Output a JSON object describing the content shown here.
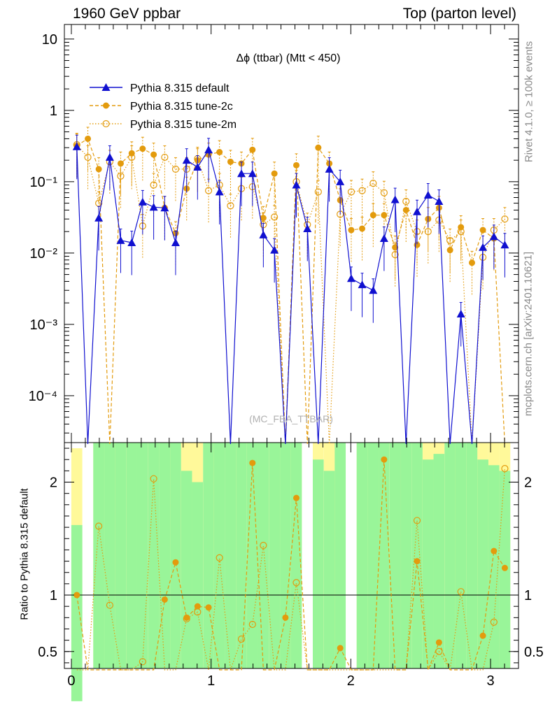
{
  "header": {
    "left": "1960 GeV ppbar",
    "right": "Top (parton level)"
  },
  "side": {
    "rivet": "Rivet 4.1.0, ≥ 100k events",
    "mcplots": "mcplots.cern.ch [arXiv:2401.10621]"
  },
  "colors": {
    "default": "#1010d0",
    "tune2c": "#e39b0d",
    "band_green": "#99f599",
    "band_yellow": "#fff99a"
  },
  "chart_data": [
    {
      "type": "line",
      "panel": "main",
      "title": "Δϕ (ttbar) (Mtt < 450)",
      "watermark": "(MC_FBA_TTBAR)",
      "xlabel": "",
      "ylabel": "",
      "yscale": "log",
      "xlim": [
        -0.05,
        3.2
      ],
      "ylim": [
        2.2e-05,
        16
      ],
      "y_tick_labels": [
        "10",
        "1",
        "10⁻¹",
        "10⁻²",
        "10⁻³",
        "10⁻⁴"
      ],
      "legend_position": "top-left",
      "legend": [
        "Pythia 8.315 default",
        "Pythia 8.315 tune-2c",
        "Pythia 8.315 tune-2m"
      ],
      "x": [
        0.039,
        0.118,
        0.196,
        0.275,
        0.353,
        0.432,
        0.51,
        0.589,
        0.668,
        0.746,
        0.825,
        0.903,
        0.982,
        1.06,
        1.139,
        1.217,
        1.296,
        1.374,
        1.453,
        1.532,
        1.61,
        1.689,
        1.767,
        1.846,
        1.924,
        2.003,
        2.081,
        2.16,
        2.238,
        2.317,
        2.395,
        2.474,
        2.553,
        2.631,
        2.71,
        2.788,
        2.867,
        2.945,
        3.024,
        3.102
      ],
      "series": [
        {
          "name": "Pythia 8.315 default",
          "marker": "triangle",
          "style": "solid",
          "values": [
            0.31,
            null,
            0.031,
            0.22,
            0.015,
            0.014,
            0.052,
            0.044,
            0.043,
            0.014,
            0.2,
            0.16,
            0.28,
            0.072,
            null,
            0.13,
            0.13,
            0.018,
            0.011,
            null,
            0.09,
            0.022,
            null,
            0.15,
            0.1,
            0.0044,
            0.0036,
            0.003,
            0.016,
            0.056,
            null,
            0.038,
            0.065,
            0.053,
            null,
            0.0014,
            null,
            0.012,
            0.017,
            0.013
          ]
        },
        {
          "name": "Pythia 8.315 tune-2c",
          "marker": "filled-circle",
          "style": "dashed",
          "values": [
            0.32,
            0.4,
            0.15,
            null,
            0.18,
            0.25,
            0.29,
            0.24,
            0.043,
            0.019,
            0.08,
            0.2,
            0.24,
            0.26,
            0.19,
            0.18,
            0.28,
            0.031,
            0.13,
            null,
            0.17,
            null,
            0.3,
            0.18,
            0.055,
            0.021,
            0.022,
            0.034,
            0.034,
            0.012,
            0.04,
            0.013,
            0.03,
            0.043,
            0.011,
            0.023,
            0.0073,
            0.021,
            0.016,
            null
          ]
        },
        {
          "name": "Pythia 8.315 tune-2m",
          "marker": "open-circle",
          "style": "dotted",
          "values": [
            0.33,
            0.22,
            0.05,
            0.19,
            0.12,
            0.22,
            0.024,
            0.09,
            0.22,
            0.15,
            0.15,
            0.21,
            0.075,
            0.09,
            0.046,
            0.08,
            0.085,
            0.025,
            0.032,
            null,
            0.1,
            0.025,
            0.072,
            null,
            0.035,
            0.072,
            0.075,
            0.095,
            0.07,
            0.0095,
            0.053,
            0.02,
            0.02,
            0.029,
            0.015,
            0.02,
            null,
            0.0087,
            0.021,
            0.03
          ]
        }
      ]
    },
    {
      "type": "line",
      "panel": "ratio",
      "xlabel": "",
      "ylabel": "Ratio to Pythia 8.315 default",
      "xlim": [
        -0.05,
        3.2
      ],
      "ylim": [
        0.35,
        2.35
      ],
      "x_tick_labels": [
        "0",
        "1",
        "2",
        "3"
      ],
      "y_tick_labels": [
        "0.5",
        "1",
        "2"
      ],
      "reference_line": 1,
      "x": [
        0.039,
        0.118,
        0.196,
        0.275,
        0.353,
        0.432,
        0.51,
        0.589,
        0.668,
        0.746,
        0.825,
        0.903,
        0.982,
        1.06,
        1.139,
        1.217,
        1.296,
        1.374,
        1.453,
        1.532,
        1.61,
        1.689,
        1.767,
        1.846,
        1.924,
        2.003,
        2.081,
        2.16,
        2.238,
        2.317,
        2.395,
        2.474,
        2.553,
        2.631,
        2.71,
        2.788,
        2.867,
        2.945,
        3.024,
        3.102
      ],
      "series": [
        {
          "name": "Pythia 8.315 tune-2c",
          "marker": "filled-circle",
          "style": "dashed",
          "values": [
            1.0,
            null,
            null,
            null,
            null,
            null,
            null,
            null,
            0.96,
            1.29,
            0.8,
            0.9,
            0.89,
            null,
            null,
            null,
            2.17,
            null,
            null,
            0.8,
            1.86,
            null,
            null,
            null,
            0.53,
            null,
            null,
            null,
            2.2,
            null,
            null,
            1.3,
            null,
            0.58,
            null,
            null,
            null,
            0.64,
            1.39,
            1.24
          ]
        },
        {
          "name": "Pythia 8.315 tune-2m",
          "marker": "open-circle",
          "style": "dotted",
          "values": [
            null,
            null,
            1.61,
            0.91,
            null,
            null,
            0.41,
            2.03,
            null,
            null,
            0.79,
            0.85,
            null,
            1.33,
            null,
            0.61,
            0.74,
            1.44,
            null,
            null,
            1.11,
            null,
            null,
            null,
            null,
            null,
            null,
            null,
            null,
            null,
            null,
            1.66,
            null,
            0.5,
            null,
            1.03,
            null,
            null,
            0.76,
            2.12
          ]
        }
      ],
      "band_green": [
        [
          0.06,
          1.62
        ],
        [
          0,
          0
        ],
        [
          0.35,
          2.35
        ],
        [
          0.35,
          2.35
        ],
        [
          0.35,
          2.35
        ],
        [
          0.35,
          2.35
        ],
        [
          0.35,
          2.35
        ],
        [
          0.35,
          2.35
        ],
        [
          0.35,
          2.35
        ],
        [
          0.35,
          2.35
        ],
        [
          0.35,
          2.1
        ],
        [
          0.35,
          2.0
        ],
        [
          0.35,
          2.35
        ],
        [
          0.35,
          2.35
        ],
        [
          0.35,
          2.35
        ],
        [
          0.35,
          2.35
        ],
        [
          0.35,
          2.35
        ],
        [
          0.35,
          2.35
        ],
        [
          0.35,
          2.35
        ],
        [
          0.35,
          2.35
        ],
        [
          0.35,
          2.35
        ],
        [
          0,
          0
        ],
        [
          0.35,
          2.2
        ],
        [
          0.35,
          2.1
        ],
        [
          0.35,
          2.35
        ],
        [
          0,
          0
        ],
        [
          0.35,
          2.35
        ],
        [
          0.35,
          2.35
        ],
        [
          0.35,
          2.35
        ],
        [
          0.35,
          2.35
        ],
        [
          0.35,
          2.35
        ],
        [
          0.35,
          2.35
        ],
        [
          0.35,
          2.2
        ],
        [
          0.35,
          2.25
        ],
        [
          0.35,
          2.35
        ],
        [
          0.35,
          2.35
        ],
        [
          0.35,
          2.35
        ],
        [
          0.35,
          2.2
        ],
        [
          0.35,
          2.15
        ],
        [
          0.35,
          2.1
        ]
      ],
      "band_yellow": [
        [
          0.35,
          2.3
        ],
        [
          0,
          0
        ],
        [
          0.35,
          2.35
        ],
        [
          0.35,
          2.35
        ],
        [
          0.35,
          2.35
        ],
        [
          0.35,
          2.35
        ],
        [
          0.35,
          2.35
        ],
        [
          0.35,
          2.35
        ],
        [
          0.35,
          2.35
        ],
        [
          0.35,
          2.35
        ],
        [
          0.35,
          2.35
        ],
        [
          0.35,
          2.35
        ],
        [
          0.35,
          2.35
        ],
        [
          0.35,
          2.35
        ],
        [
          0.35,
          2.35
        ],
        [
          0.35,
          2.35
        ],
        [
          0.35,
          2.35
        ],
        [
          0.35,
          2.35
        ],
        [
          0.35,
          2.35
        ],
        [
          0.35,
          2.35
        ],
        [
          0.35,
          2.35
        ],
        [
          0,
          0
        ],
        [
          0.35,
          2.35
        ],
        [
          0.35,
          2.35
        ],
        [
          0.35,
          2.35
        ],
        [
          0,
          0
        ],
        [
          0.35,
          2.35
        ],
        [
          0.35,
          2.35
        ],
        [
          0.35,
          2.35
        ],
        [
          0.35,
          2.35
        ],
        [
          0.35,
          2.35
        ],
        [
          0.35,
          2.35
        ],
        [
          0.35,
          2.35
        ],
        [
          0.35,
          2.35
        ],
        [
          0.35,
          2.35
        ],
        [
          0.35,
          2.35
        ],
        [
          0.35,
          2.35
        ],
        [
          0.35,
          2.35
        ],
        [
          0.35,
          2.35
        ],
        [
          0.35,
          2.35
        ]
      ]
    }
  ]
}
